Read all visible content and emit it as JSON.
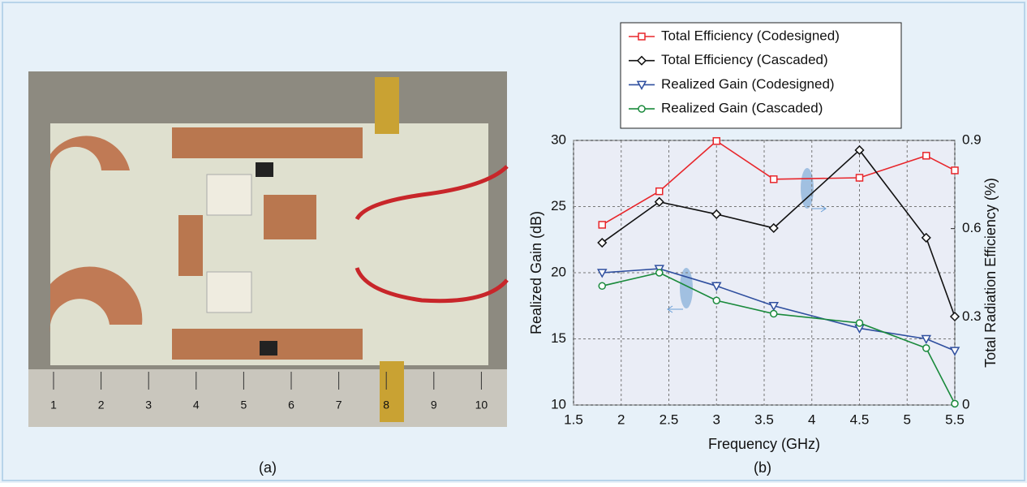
{
  "chart_data": {
    "type": "line",
    "xlabel": "Frequency (GHz)",
    "ylabel": "Realized Gain (dB)",
    "y2label": "Total Radiation Efficiency (%)",
    "x": [
      1.8,
      2.4,
      3.0,
      3.6,
      4.5,
      5.2,
      5.5
    ],
    "xlim": [
      1.5,
      5.5
    ],
    "xticks": [
      1.5,
      2,
      2.5,
      3,
      3.5,
      4,
      4.5,
      5,
      5.5
    ],
    "ylim": [
      10,
      30
    ],
    "yticks": [
      10,
      15,
      20,
      25,
      30
    ],
    "y2lim": [
      0,
      0.9
    ],
    "y2ticks": [
      0,
      0.3,
      0.6,
      0.9
    ],
    "grid": true,
    "legend": "top",
    "series": [
      {
        "name": "Total Efficiency (Codesigned)",
        "color": "#e8262b",
        "marker": "square",
        "axis": "y2",
        "values": [
          0.613,
          0.727,
          0.898,
          0.768,
          0.773,
          0.848,
          0.798
        ]
      },
      {
        "name": "Total Efficiency (Cascaded)",
        "color": "#111111",
        "marker": "diamond",
        "axis": "y2",
        "values": [
          0.552,
          0.691,
          0.649,
          0.602,
          0.867,
          0.569,
          0.301
        ]
      },
      {
        "name": "Realized Gain (Codesigned)",
        "color": "#2f4f9f",
        "marker": "triangle-down",
        "values": [
          20.0,
          20.3,
          19.0,
          17.5,
          15.8,
          15.0,
          14.1
        ]
      },
      {
        "name": "Realized Gain (Cascaded)",
        "color": "#1a8a3c",
        "marker": "circle",
        "values": [
          19.0,
          20.0,
          17.9,
          16.9,
          16.2,
          14.3,
          10.1
        ]
      }
    ]
  },
  "photo": {
    "ruler_labels": [
      "1",
      "2",
      "3",
      "4",
      "5",
      "6",
      "7",
      "8",
      "9",
      "10"
    ]
  },
  "captions": [
    "(a)",
    "(b)"
  ]
}
